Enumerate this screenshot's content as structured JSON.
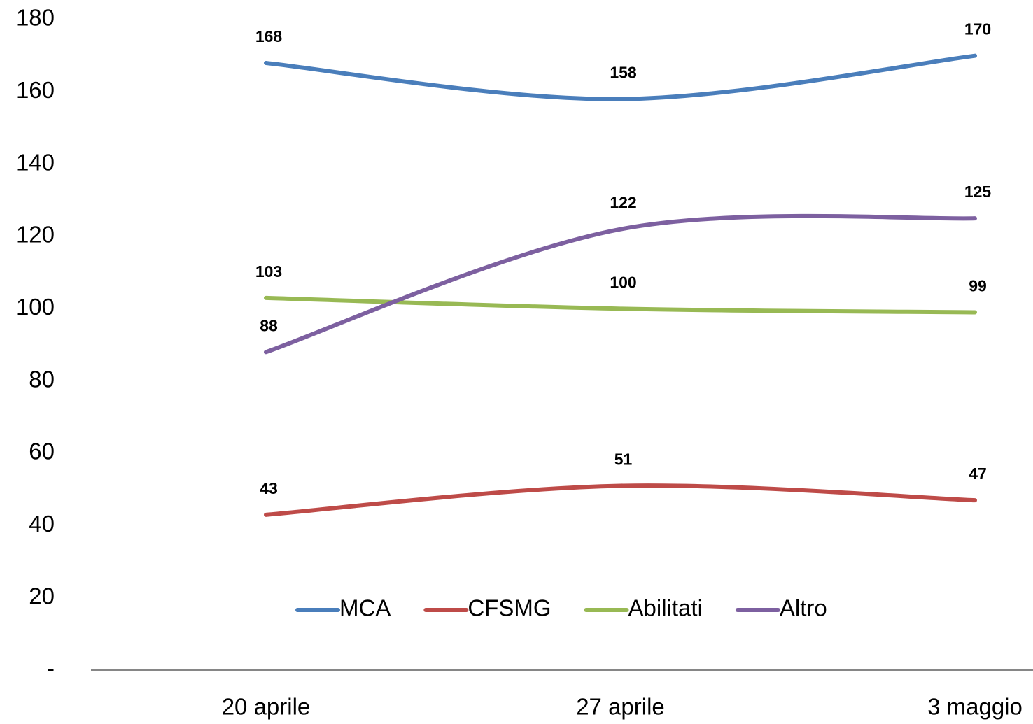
{
  "chart_data": {
    "type": "line",
    "categories": [
      "20 aprile",
      "27 aprile",
      "3 maggio"
    ],
    "series": [
      {
        "name": "MCA",
        "color": "#4a7ebb",
        "values": [
          168,
          158,
          170
        ]
      },
      {
        "name": "CFSMG",
        "color": "#be4b48",
        "values": [
          43,
          51,
          47
        ]
      },
      {
        "name": "Abilitati",
        "color": "#98b954",
        "values": [
          103,
          100,
          99
        ]
      },
      {
        "name": "Altro",
        "color": "#7d60a0",
        "values": [
          88,
          122,
          125
        ]
      }
    ],
    "ylim": [
      0,
      180
    ],
    "yticks": [
      {
        "value": 0,
        "label": "-"
      },
      20,
      40,
      60,
      80,
      100,
      120,
      140,
      160,
      180
    ],
    "grid": false,
    "legend": "bottom"
  }
}
